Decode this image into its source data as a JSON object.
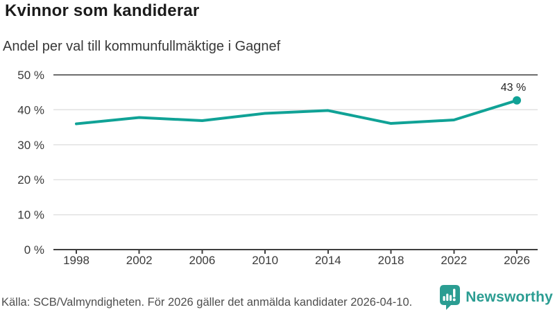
{
  "chart_data": {
    "type": "line",
    "title": "Kvinnor som kandiderar",
    "subtitle": "Andel per val till kommunfullmäktige i Gagnef",
    "categories": [
      "1998",
      "2002",
      "2006",
      "2010",
      "2014",
      "2018",
      "2022",
      "2026"
    ],
    "values": [
      36,
      37.8,
      36.9,
      39,
      39.8,
      36.1,
      37.1,
      42.7
    ],
    "xlabel": "",
    "ylabel": "",
    "ylim": [
      0,
      50
    ],
    "yticks": [
      {
        "value": 0,
        "label": "0 %"
      },
      {
        "value": 10,
        "label": "10 %"
      },
      {
        "value": 20,
        "label": "20 %"
      },
      {
        "value": 30,
        "label": "30 %"
      },
      {
        "value": 40,
        "label": "40 %"
      },
      {
        "value": 50,
        "label": "50 %"
      }
    ],
    "grid": "horizontal",
    "legend": "none",
    "line_color": "#10a296",
    "end_marker": true,
    "annotation": {
      "category": "2026",
      "label": "43 %"
    }
  },
  "footer": {
    "source": "Källa: SCB/Valmyndigheten. För 2026 gäller det anmälda kandidater 2026-04-10.",
    "logo_text": "Newsworthy",
    "logo_color": "#2b9d92",
    "logo_icon": "newsworthy-speech-bubble-bar-chart"
  }
}
